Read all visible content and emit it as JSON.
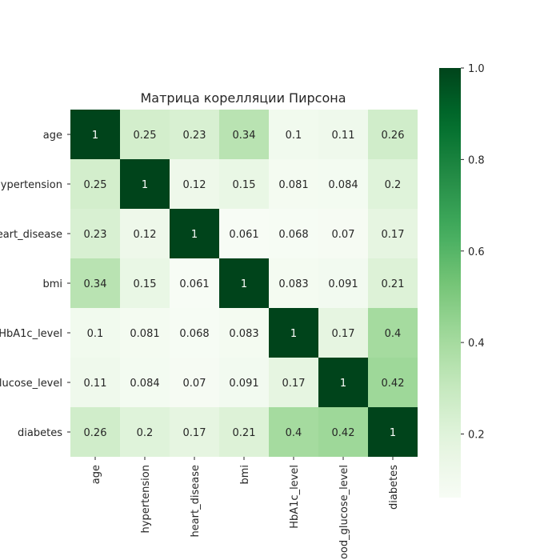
{
  "chart_data": {
    "type": "heatmap",
    "title": "Матрица корелляции Пирсона",
    "row_labels": [
      "age",
      "hypertension",
      "heart_disease",
      "bmi",
      "HbA1c_level",
      "blood_glucose_level",
      "diabetes"
    ],
    "col_labels": [
      "age",
      "hypertension",
      "heart_disease",
      "bmi",
      "HbA1c_level",
      "blood_glucose_level",
      "diabetes"
    ],
    "values": [
      [
        1,
        0.25,
        0.23,
        0.34,
        0.1,
        0.11,
        0.26
      ],
      [
        0.25,
        1,
        0.12,
        0.15,
        0.081,
        0.084,
        0.2
      ],
      [
        0.23,
        0.12,
        1,
        0.061,
        0.068,
        0.07,
        0.17
      ],
      [
        0.34,
        0.15,
        0.061,
        1,
        0.083,
        0.091,
        0.21
      ],
      [
        0.1,
        0.081,
        0.068,
        0.083,
        1,
        0.17,
        0.4
      ],
      [
        0.11,
        0.084,
        0.07,
        0.091,
        0.17,
        1,
        0.42
      ],
      [
        0.26,
        0.2,
        0.17,
        0.21,
        0.4,
        0.42,
        1
      ]
    ],
    "colormap": "Greens",
    "vmin": 0.061,
    "vmax": 1.0,
    "colorbar_ticks": [
      0.2,
      0.4,
      0.6,
      0.8,
      1.0
    ],
    "colorbar_tick_labels": [
      "0.2",
      "0.4",
      "0.6",
      "0.8",
      "1.0"
    ],
    "grid": false,
    "annotated": true
  }
}
